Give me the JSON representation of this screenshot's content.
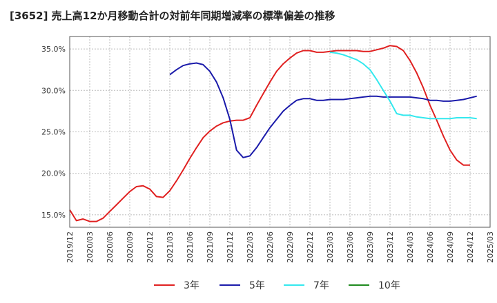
{
  "chart_data": {
    "type": "line",
    "title": "[3652]  売上高12か月移動合計の対前年同期増減率の標準偏差の推移",
    "xlabel": "",
    "ylabel": "",
    "ylim": [
      13.5,
      36.5
    ],
    "grid": true,
    "legend_position": "bottom",
    "x_start": "2019-12",
    "x_step_months": 1,
    "x_ticks": [
      "2019/12",
      "2020/03",
      "2020/06",
      "2020/09",
      "2020/12",
      "2021/03",
      "2021/06",
      "2021/09",
      "2021/12",
      "2022/03",
      "2022/06",
      "2022/09",
      "2022/12",
      "2023/03",
      "2023/06",
      "2023/09",
      "2023/12",
      "2024/03",
      "2024/06",
      "2024/09",
      "2024/12",
      "2025/03"
    ],
    "y_ticks": [
      15,
      20,
      25,
      30,
      35
    ],
    "y_tick_labels": [
      "15.0%",
      "20.0%",
      "25.0%",
      "30.0%",
      "35.0%"
    ],
    "series": [
      {
        "name": "3年",
        "color": "#e02020",
        "start_index": 0,
        "values": [
          15.6,
          14.3,
          14.5,
          14.2,
          14.2,
          14.6,
          15.4,
          16.2,
          17.0,
          17.8,
          18.4,
          18.5,
          18.1,
          17.2,
          17.1,
          17.9,
          19.1,
          20.4,
          21.8,
          23.1,
          24.3,
          25.1,
          25.7,
          26.1,
          26.3,
          26.4,
          26.4,
          26.7,
          28.2,
          29.6,
          31.0,
          32.3,
          33.2,
          33.9,
          34.5,
          34.8,
          34.8,
          34.6,
          34.6,
          34.7,
          34.8,
          34.8,
          34.8,
          34.8,
          34.7,
          34.7,
          34.9,
          35.1,
          35.4,
          35.3,
          34.8,
          33.6,
          32.1,
          30.3,
          28.2,
          26.4,
          24.5,
          22.8,
          21.6,
          21.0,
          21.0
        ]
      },
      {
        "name": "5年",
        "color": "#1a1aaa",
        "start_index": 15,
        "values": [
          31.9,
          32.5,
          33.0,
          33.2,
          33.3,
          33.1,
          32.3,
          31.0,
          29.1,
          26.5,
          22.8,
          21.9,
          22.1,
          23.1,
          24.3,
          25.5,
          26.5,
          27.5,
          28.2,
          28.8,
          29.0,
          29.0,
          28.8,
          28.8,
          28.9,
          28.9,
          28.9,
          29.0,
          29.1,
          29.2,
          29.3,
          29.3,
          29.2,
          29.2,
          29.2,
          29.2,
          29.2,
          29.1,
          29.0,
          28.8,
          28.8,
          28.7,
          28.7,
          28.8,
          28.9,
          29.1,
          29.3
        ]
      },
      {
        "name": "7年",
        "color": "#33e8ee",
        "start_index": 39,
        "values": [
          34.6,
          34.5,
          34.3,
          34.0,
          33.7,
          33.2,
          32.5,
          31.3,
          30.0,
          28.7,
          27.2,
          27.0,
          27.0,
          26.8,
          26.7,
          26.6,
          26.6,
          26.6,
          26.6,
          26.7,
          26.7,
          26.7,
          26.6
        ]
      },
      {
        "name": "10年",
        "color": "#1e8a1e",
        "start_index": 0,
        "values": []
      }
    ]
  }
}
